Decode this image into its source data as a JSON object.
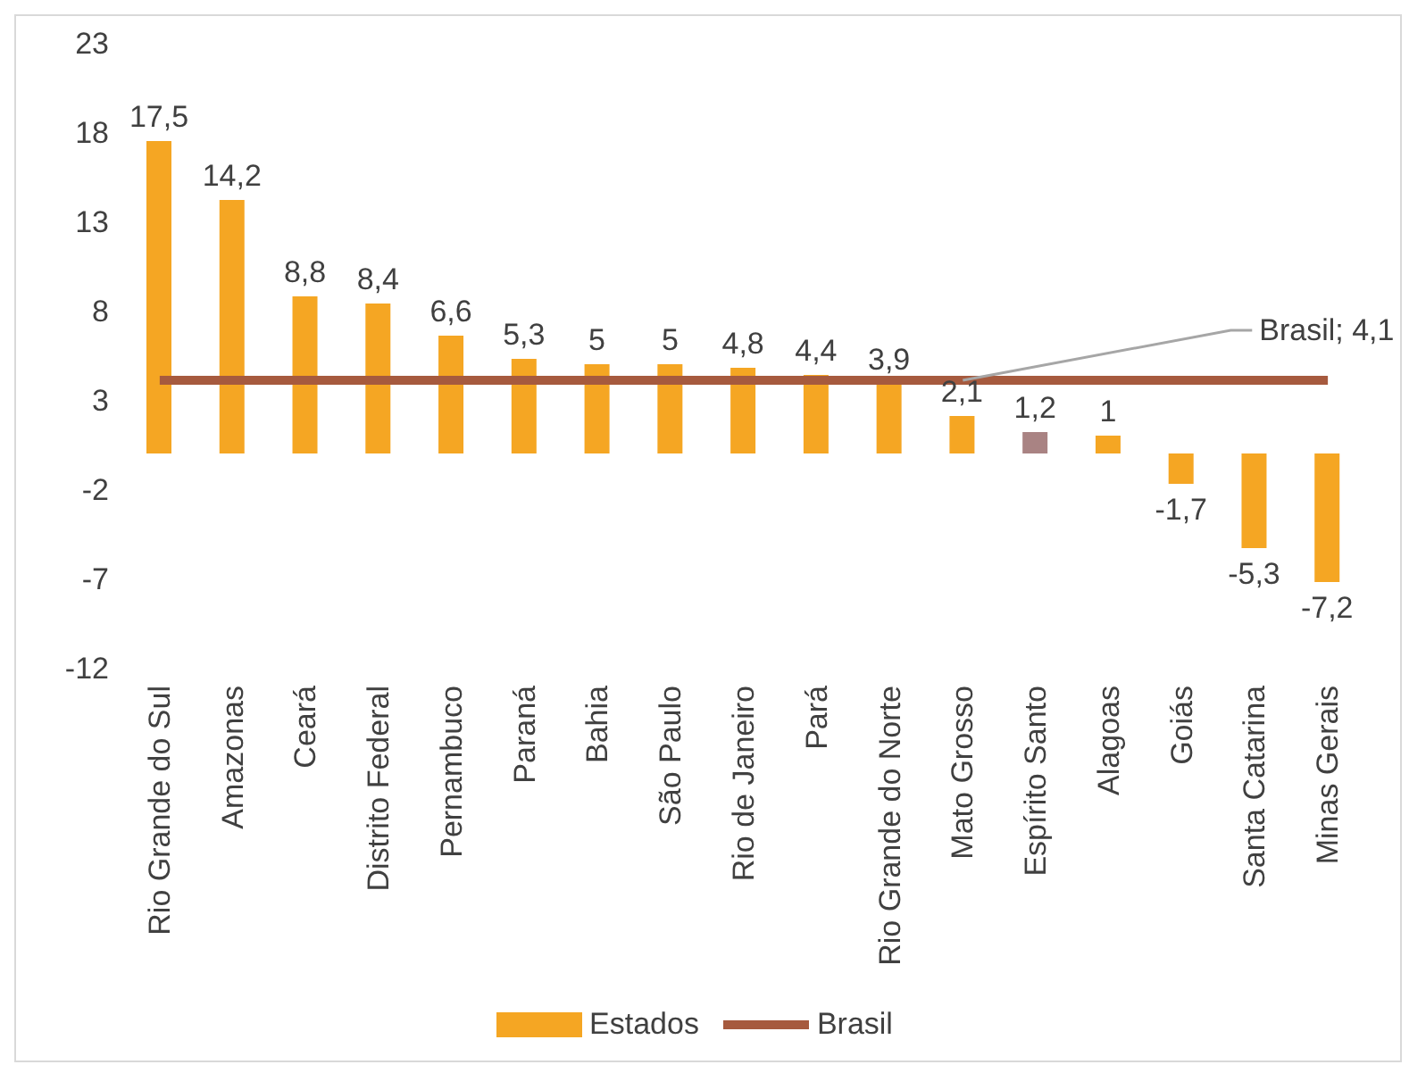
{
  "chart_data": {
    "type": "bar",
    "categories": [
      "Rio Grande do Sul",
      "Amazonas",
      "Ceará",
      "Distrito Federal",
      "Pernambuco",
      "Paraná",
      "Bahia",
      "São Paulo",
      "Rio de Janeiro",
      "Pará",
      "Rio Grande do Norte",
      "Mato Grosso",
      "Espírito Santo",
      "Alagoas",
      "Goiás",
      "Santa Catarina",
      "Minas Gerais"
    ],
    "series": [
      {
        "name": "Estados",
        "color": "#f5a623",
        "colors": [
          "#f5a623",
          "#f5a623",
          "#f5a623",
          "#f5a623",
          "#f5a623",
          "#f5a623",
          "#f5a623",
          "#f5a623",
          "#f5a623",
          "#f5a623",
          "#f5a623",
          "#f5a623",
          "#a98383",
          "#f5a623",
          "#f5a623",
          "#f5a623",
          "#f5a623"
        ],
        "values": [
          17.5,
          14.2,
          8.8,
          8.4,
          6.6,
          5.3,
          5,
          5,
          4.8,
          4.4,
          3.9,
          2.1,
          1.2,
          1,
          -1.7,
          -5.3,
          -7.2
        ],
        "value_labels": [
          "17,5",
          "14,2",
          "8,8",
          "8,4",
          "6,6",
          "5,3",
          "5",
          "5",
          "4,8",
          "4,4",
          "3,9",
          "2,1",
          "1,2",
          "1",
          "-1,7",
          "-5,3",
          "-7,2"
        ]
      },
      {
        "name": "Brasil",
        "type": "line",
        "color": "#a65a3e",
        "values": [
          4.1,
          4.1,
          4.1,
          4.1,
          4.1,
          4.1,
          4.1,
          4.1,
          4.1,
          4.1,
          4.1,
          4.1,
          4.1,
          4.1,
          4.1,
          4.1,
          4.1
        ]
      }
    ],
    "annotations": [
      {
        "text": "Brasil; 4,1",
        "x": "Mato Grosso",
        "y": 4.1
      }
    ],
    "ylim": [
      -12,
      23
    ],
    "yticks": [
      -12,
      -7,
      -2,
      3,
      8,
      13,
      18,
      23
    ],
    "grid": false,
    "legend": "bottom",
    "marker": "none",
    "line_style": "solid"
  }
}
